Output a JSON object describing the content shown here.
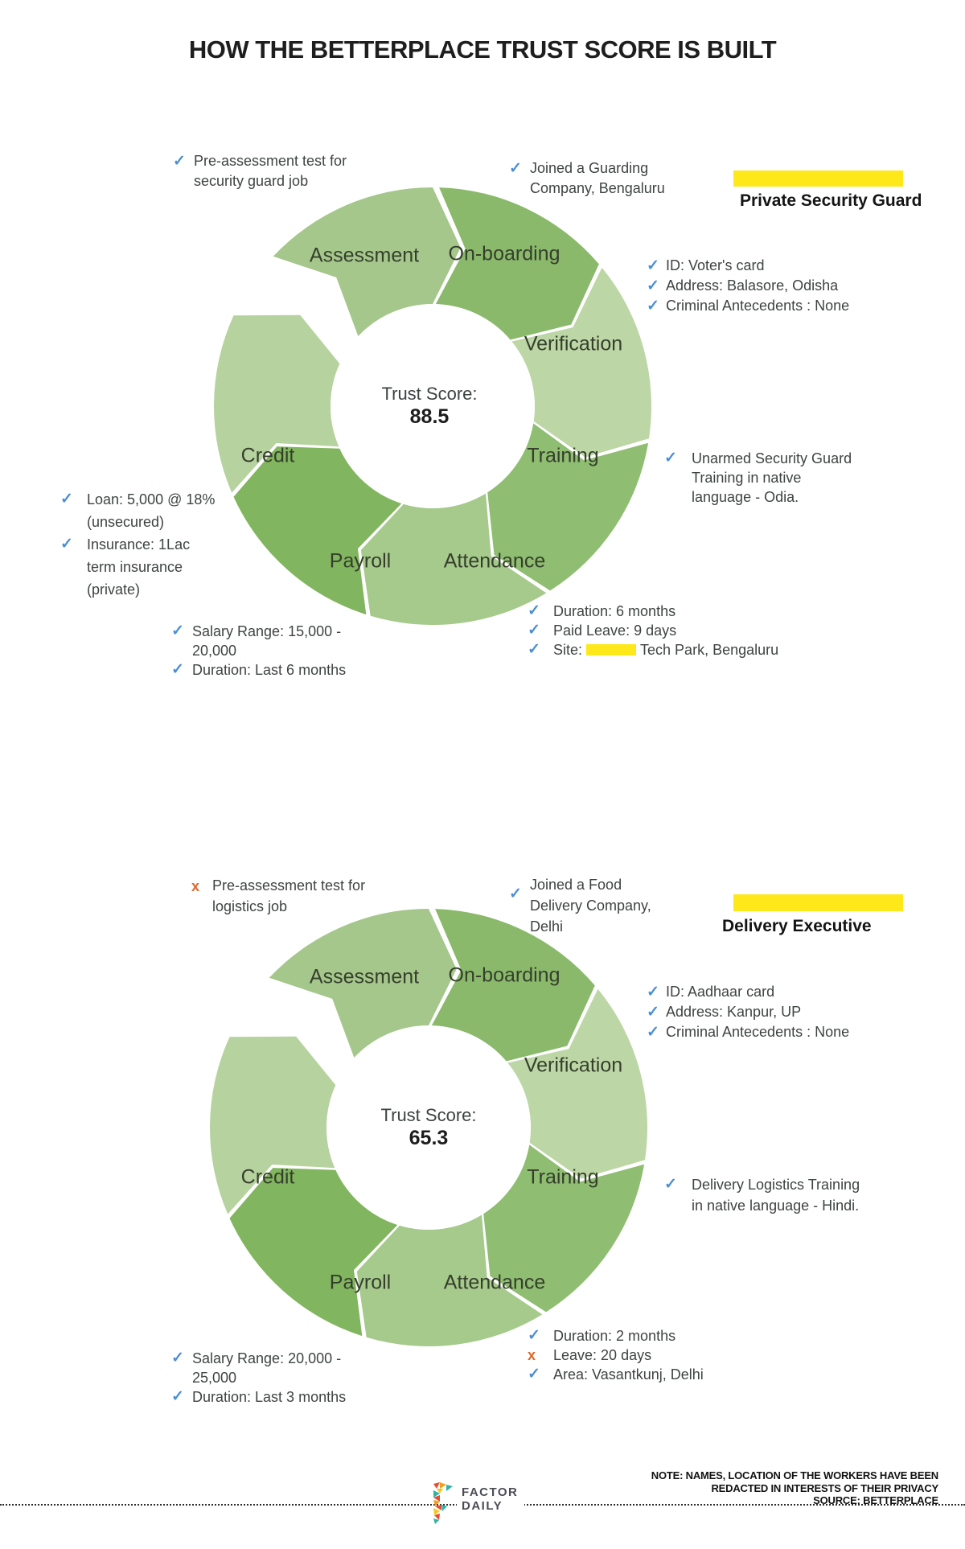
{
  "title": "HOW THE BETTERPLACE TRUST SCORE IS BUILT",
  "icons": {
    "check": "✓",
    "cross": "x"
  },
  "colors": {
    "check": "#4a8fd4",
    "cross": "#e0662a",
    "redaction": "#ffe81a"
  },
  "wheels": [
    {
      "person_title": "Private Security Guard",
      "trust_score_label": "Trust Score:",
      "trust_score": "88.5",
      "segments": [
        {
          "name": "Assessment",
          "color": "#a5c78b",
          "start": 312,
          "end": 360
        },
        {
          "name": "On-boarding",
          "color": "#8bb96c",
          "start": 0.5,
          "end": 49.5
        },
        {
          "name": "Verification",
          "color": "#bdd6a6",
          "start": 49.5,
          "end": 98.5
        },
        {
          "name": "Training",
          "color": "#8fbd71",
          "start": 98.5,
          "end": 147.5
        },
        {
          "name": "Attendance",
          "color": "#a6c98c",
          "start": 147.5,
          "end": 196.5
        },
        {
          "name": "Payroll",
          "color": "#82b55f",
          "start": 196.5,
          "end": 245.5
        },
        {
          "name": "Credit",
          "color": "#b6d29e",
          "start": 245.5,
          "end": 294.5
        }
      ],
      "annotations": {
        "assessment": {
          "lines": [
            "Pre-assessment test for",
            "security guard job"
          ]
        },
        "onboarding": {
          "lines": [
            "Joined a Guarding",
            "Company, Bengaluru"
          ]
        },
        "verification": [
          "ID: Voter's card",
          "Address: Balasore, Odisha",
          "Criminal Antecedents : None"
        ],
        "training": {
          "lines": [
            "Unarmed Security Guard",
            "Training in native",
            "language - Odia."
          ]
        },
        "attendance": {
          "item1": "Duration: 6 months",
          "item2": "Paid Leave: 9 days",
          "site_pre": "Site:",
          "site_post": "Tech Park, Bengaluru"
        },
        "payroll": {
          "salary_lines": [
            "Salary Range: 15,000 -",
            "20,000"
          ],
          "duration": "Duration: Last 6 months"
        },
        "credit": {
          "loan_lines": [
            "Loan: 5,000 @ 18%",
            "(unsecured)"
          ],
          "insurance_lines": [
            "Insurance: 1Lac",
            "term insurance",
            "(private)"
          ]
        }
      }
    },
    {
      "person_title": "Delivery Executive",
      "trust_score_label": "Trust Score:",
      "trust_score": "65.3",
      "segments": [
        {
          "name": "Assessment",
          "color": "#a5c78b",
          "start": 312,
          "end": 360
        },
        {
          "name": "On-boarding",
          "color": "#8bb96c",
          "start": 0.5,
          "end": 49.5
        },
        {
          "name": "Verification",
          "color": "#bdd6a6",
          "start": 49.5,
          "end": 98.5
        },
        {
          "name": "Training",
          "color": "#8fbd71",
          "start": 98.5,
          "end": 147.5
        },
        {
          "name": "Attendance",
          "color": "#a6c98c",
          "start": 147.5,
          "end": 196.5
        },
        {
          "name": "Payroll",
          "color": "#82b55f",
          "start": 196.5,
          "end": 245.5
        },
        {
          "name": "Credit",
          "color": "#b6d29e",
          "start": 245.5,
          "end": 294.5
        }
      ],
      "annotations": {
        "assessment": {
          "lines": [
            "Pre-assessment test for",
            "logistics job"
          ]
        },
        "onboarding": {
          "lines": [
            "Joined a Food",
            "Delivery Company,",
            "Delhi"
          ]
        },
        "verification": [
          "ID: Aadhaar card",
          "Address: Kanpur, UP",
          "Criminal Antecedents : None"
        ],
        "training": {
          "lines": [
            "Delivery Logistics Training",
            "in native language - Hindi."
          ]
        },
        "attendance": {
          "item1": "Duration: 2 months",
          "item2": "Leave: 20 days",
          "item3": "Area: Vasantkunj, Delhi"
        },
        "payroll": {
          "salary_lines": [
            "Salary Range: 20,000 -",
            "25,000"
          ],
          "duration": "Duration: Last 3 months"
        }
      }
    }
  ],
  "footer": {
    "note_lines": [
      "NOTE: NAMES, LOCATION OF THE WORKERS HAVE BEEN",
      "REDACTED IN INTERESTS OF THEIR PRIVACY",
      "SOURCE: BETTERPLACE"
    ],
    "logo_line1": "FACTOR",
    "logo_line2": "DAILY"
  }
}
